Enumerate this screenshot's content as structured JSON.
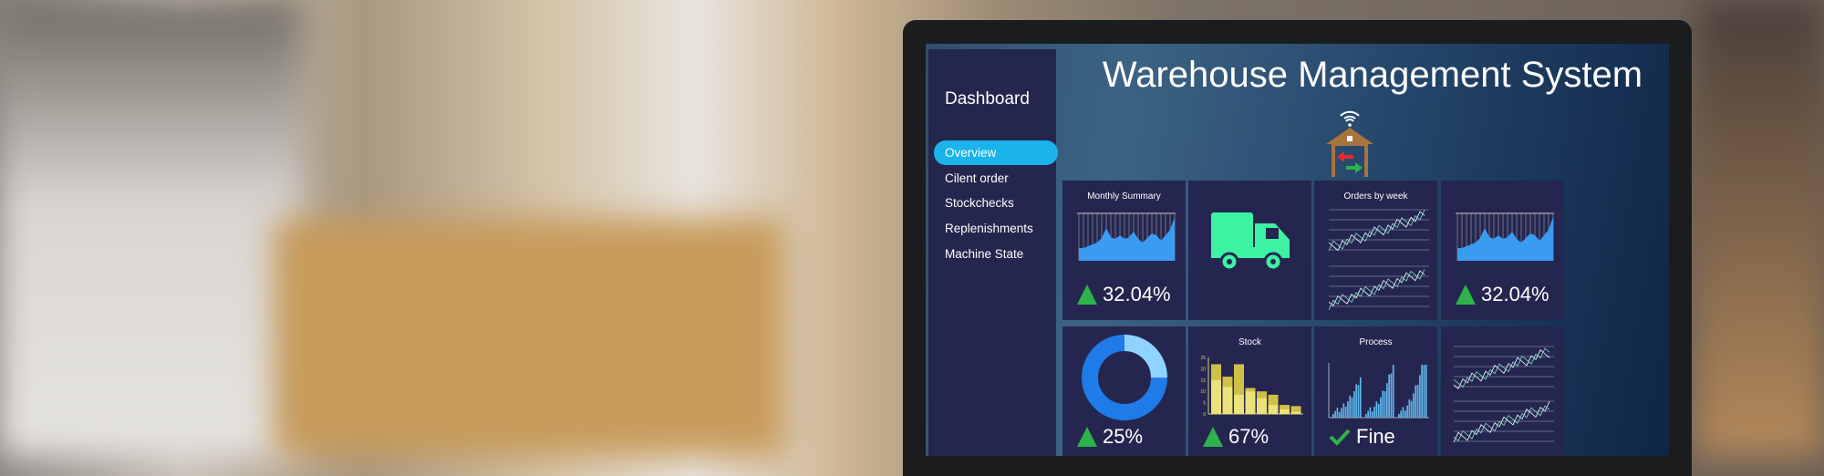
{
  "dashboard": {
    "title": "Warehouse Management System",
    "sidebar": {
      "heading": "Dashboard",
      "items": [
        {
          "label": "Overview",
          "active": true
        },
        {
          "label": "Cilent order"
        },
        {
          "label": "Stockchecks"
        },
        {
          "label": "Replenishments"
        },
        {
          "label": "Machine State"
        }
      ]
    },
    "panels": {
      "monthly_summary": {
        "title": "Monthly Summary",
        "kpi": "32.04%"
      },
      "truck": {
        "icon": "truck-icon",
        "color": "#3ef2a3"
      },
      "orders_by_week": {
        "title": "Orders by week"
      },
      "summary2": {
        "kpi": "32.04%"
      },
      "donut": {
        "kpi": "25%",
        "fraction": 0.25,
        "colors": [
          "#8fd3ff",
          "#1f7be8"
        ]
      },
      "stock": {
        "title": "Stock",
        "kpi": "67%",
        "y_ticks": [
          "0",
          "5",
          "10",
          "15",
          "20",
          "25"
        ],
        "totals": [
          22,
          16.5,
          22,
          11.5,
          10,
          8.5,
          4,
          3.5
        ],
        "lower": [
          15,
          12,
          8.5,
          10,
          7,
          4,
          2,
          1
        ]
      },
      "process": {
        "title": "Process",
        "status": "Fine"
      }
    },
    "colors": {
      "up": "#2db34a",
      "accent": "#1ab3ea",
      "panel": "#25264f"
    }
  }
}
